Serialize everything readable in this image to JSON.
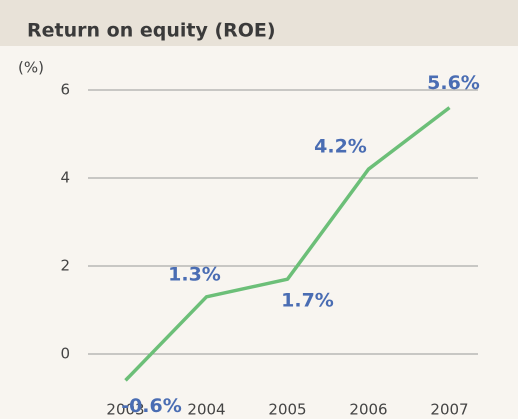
{
  "chart_data": {
    "type": "line",
    "title": "Return on equity (ROE)",
    "y_label": "(%)",
    "categories": [
      "2003",
      "2004",
      "2005",
      "2006",
      "2007"
    ],
    "series": [
      {
        "name": "ROE",
        "color": "#6cbf78",
        "values": [
          -0.6,
          1.3,
          1.7,
          4.2,
          5.6
        ]
      }
    ],
    "value_labels": [
      "-0.6%",
      "1.3%",
      "1.7%",
      "4.2%",
      "5.6%"
    ],
    "ylim": [
      -1,
      6.5
    ],
    "yticks": [
      0,
      2,
      4,
      6
    ],
    "grid": true
  }
}
